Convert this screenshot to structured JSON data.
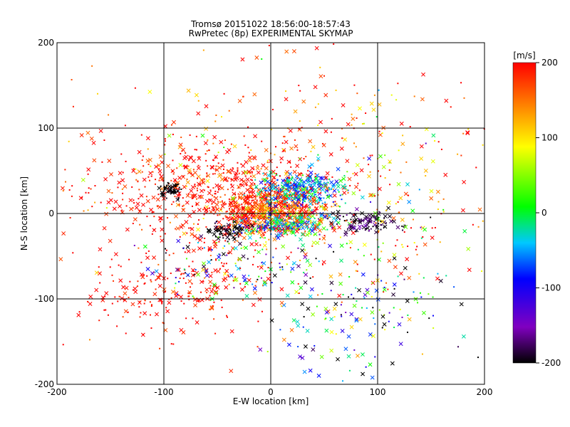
{
  "chart_data": {
    "type": "scatter",
    "title_line1": "Tromsø 20151022 18:56:00-18:57:43",
    "title_line2": "RwPretec (8p) EXPERIMENTAL SKYMAP",
    "xlabel": "E-W location [km]",
    "ylabel": "N-S location [km]",
    "xlim": [
      -200,
      200
    ],
    "ylim": [
      -200,
      200
    ],
    "x_ticks": [
      -200,
      -100,
      0,
      100,
      200
    ],
    "y_ticks": [
      -200,
      -100,
      0,
      100,
      200
    ],
    "x_tick_labels": [
      "-200",
      "-100",
      "0",
      "100",
      "200"
    ],
    "y_tick_labels": [
      "-200",
      "-100",
      "0",
      "100",
      "200"
    ],
    "grid": true,
    "colorbar": {
      "label": "[m/s]",
      "range": [
        -200,
        200
      ],
      "ticks": [
        200,
        100,
        0,
        -100,
        -200
      ],
      "tick_labels": [
        "200",
        "100",
        "0",
        "-100",
        "-200"
      ],
      "colors": [
        "#000000",
        "#8000c0",
        "#0000ff",
        "#00c8ff",
        "#00ff00",
        "#ffff00",
        "#ff8000",
        "#ff0000"
      ]
    },
    "marker_styles": [
      "x",
      "dot"
    ],
    "clusters": [
      {
        "cx": 0,
        "cy": 5,
        "sx": 25,
        "sy": 15,
        "n": 650,
        "vmean": 180,
        "vspread": 50
      },
      {
        "cx": 30,
        "cy": 30,
        "sx": 20,
        "sy": 10,
        "n": 300,
        "vmean": -50,
        "vspread": 40
      },
      {
        "cx": 15,
        "cy": -12,
        "sx": 25,
        "sy": 8,
        "n": 240,
        "vmean": -20,
        "vspread": 60
      },
      {
        "cx": -60,
        "cy": 30,
        "sx": 55,
        "sy": 30,
        "n": 480,
        "vmean": 200,
        "vspread": 25
      },
      {
        "cx": -95,
        "cy": 28,
        "sx": 5,
        "sy": 5,
        "n": 60,
        "vmean": -200,
        "vspread": 5
      },
      {
        "cx": -40,
        "cy": -20,
        "sx": 10,
        "sy": 5,
        "n": 60,
        "vmean": -200,
        "vspread": 10
      },
      {
        "cx": 90,
        "cy": -10,
        "sx": 20,
        "sy": 6,
        "n": 110,
        "vmean": -190,
        "vspread": 20
      },
      {
        "cx": -90,
        "cy": -90,
        "sx": 45,
        "sy": 25,
        "n": 220,
        "vmean": 200,
        "vspread": 20
      },
      {
        "cx": 80,
        "cy": -120,
        "sx": 45,
        "sy": 40,
        "n": 180,
        "vmean": -60,
        "vspread": 120
      },
      {
        "cx": 0,
        "cy": 60,
        "sx": 110,
        "sy": 70,
        "n": 380,
        "vmean": 170,
        "vspread": 60
      },
      {
        "cx": 120,
        "cy": 10,
        "sx": 60,
        "sy": 50,
        "n": 140,
        "vmean": 130,
        "vspread": 110
      },
      {
        "cx": -30,
        "cy": -60,
        "sx": 40,
        "sy": 20,
        "n": 150,
        "vmean": -20,
        "vspread": 130
      }
    ]
  }
}
